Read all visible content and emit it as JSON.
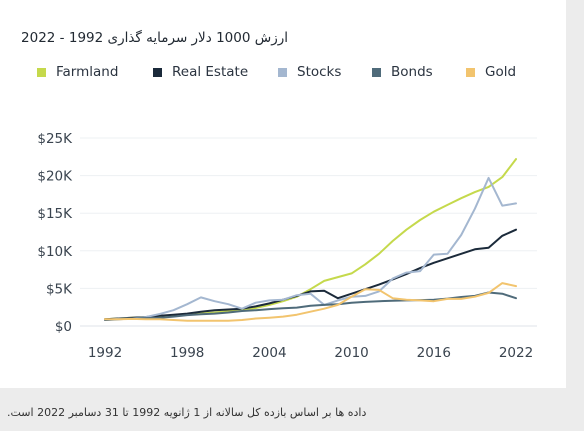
{
  "title": "ارزش 1000 دلار سرمایه گذاری 1992 - 2022",
  "footnote": "داده ها بر اساس بازده کل سالانه از 1 ژانویه 1992 تا 31 دسامبر 2022 است.",
  "chart_data": {
    "type": "line",
    "x": [
      1992,
      1993,
      1994,
      1995,
      1996,
      1997,
      1998,
      1999,
      2000,
      2001,
      2002,
      2003,
      2004,
      2005,
      2006,
      2007,
      2008,
      2009,
      2010,
      2011,
      2012,
      2013,
      2014,
      2015,
      2016,
      2017,
      2018,
      2019,
      2020,
      2021,
      2022
    ],
    "series": [
      {
        "name": "Farmland",
        "color": "#c5d94c",
        "values": [
          900,
          1000,
          1100,
          1200,
          1300,
          1400,
          1500,
          1650,
          1800,
          1950,
          2100,
          2400,
          2800,
          3300,
          3900,
          4900,
          6000,
          6500,
          7000,
          8200,
          9600,
          11300,
          12800,
          14100,
          15200,
          16100,
          17000,
          17800,
          18500,
          19800,
          22200
        ]
      },
      {
        "name": "Real Estate",
        "color": "#1b2a3a",
        "values": [
          900,
          1000,
          1100,
          1200,
          1350,
          1500,
          1650,
          1900,
          2100,
          2200,
          2300,
          2600,
          3000,
          3500,
          4000,
          4600,
          4700,
          3700,
          4300,
          4900,
          5500,
          6200,
          6900,
          7700,
          8400,
          9000,
          9600,
          10200,
          10400,
          12000,
          12800
        ]
      },
      {
        "name": "Stocks",
        "color": "#a4b7d0",
        "values": [
          800,
          950,
          1000,
          1200,
          1600,
          2100,
          2900,
          3800,
          3300,
          2900,
          2300,
          3100,
          3400,
          3500,
          4100,
          4300,
          2800,
          3400,
          3900,
          4000,
          4600,
          6300,
          7100,
          7300,
          9500,
          9600,
          12100,
          15600,
          19700,
          16000,
          16300
        ]
      },
      {
        "name": "Bonds",
        "color": "#4f6b7a",
        "values": [
          800,
          900,
          1000,
          1050,
          1100,
          1250,
          1450,
          1550,
          1650,
          1800,
          2000,
          2100,
          2250,
          2350,
          2450,
          2700,
          2800,
          2900,
          3100,
          3200,
          3300,
          3350,
          3400,
          3450,
          3500,
          3650,
          3850,
          4000,
          4450,
          4300,
          3700
        ]
      },
      {
        "name": "Gold",
        "color": "#f2c46e",
        "values": [
          900,
          900,
          950,
          900,
          900,
          800,
          700,
          700,
          700,
          700,
          800,
          1000,
          1100,
          1250,
          1500,
          1900,
          2300,
          2800,
          3900,
          4900,
          4800,
          3700,
          3500,
          3400,
          3300,
          3600,
          3600,
          3900,
          4400,
          5700,
          5300
        ]
      }
    ],
    "xticks": [
      "1992",
      "1998",
      "2004",
      "2010",
      "2016",
      "2022"
    ],
    "yticks": [
      "$0",
      "$5K",
      "$10K",
      "$15K",
      "$20K",
      "$25K"
    ],
    "ylim": [
      0,
      25000
    ],
    "xlim": [
      1992,
      2022
    ],
    "grid": true,
    "legend": "top-left",
    "xlabel": "",
    "ylabel": ""
  }
}
